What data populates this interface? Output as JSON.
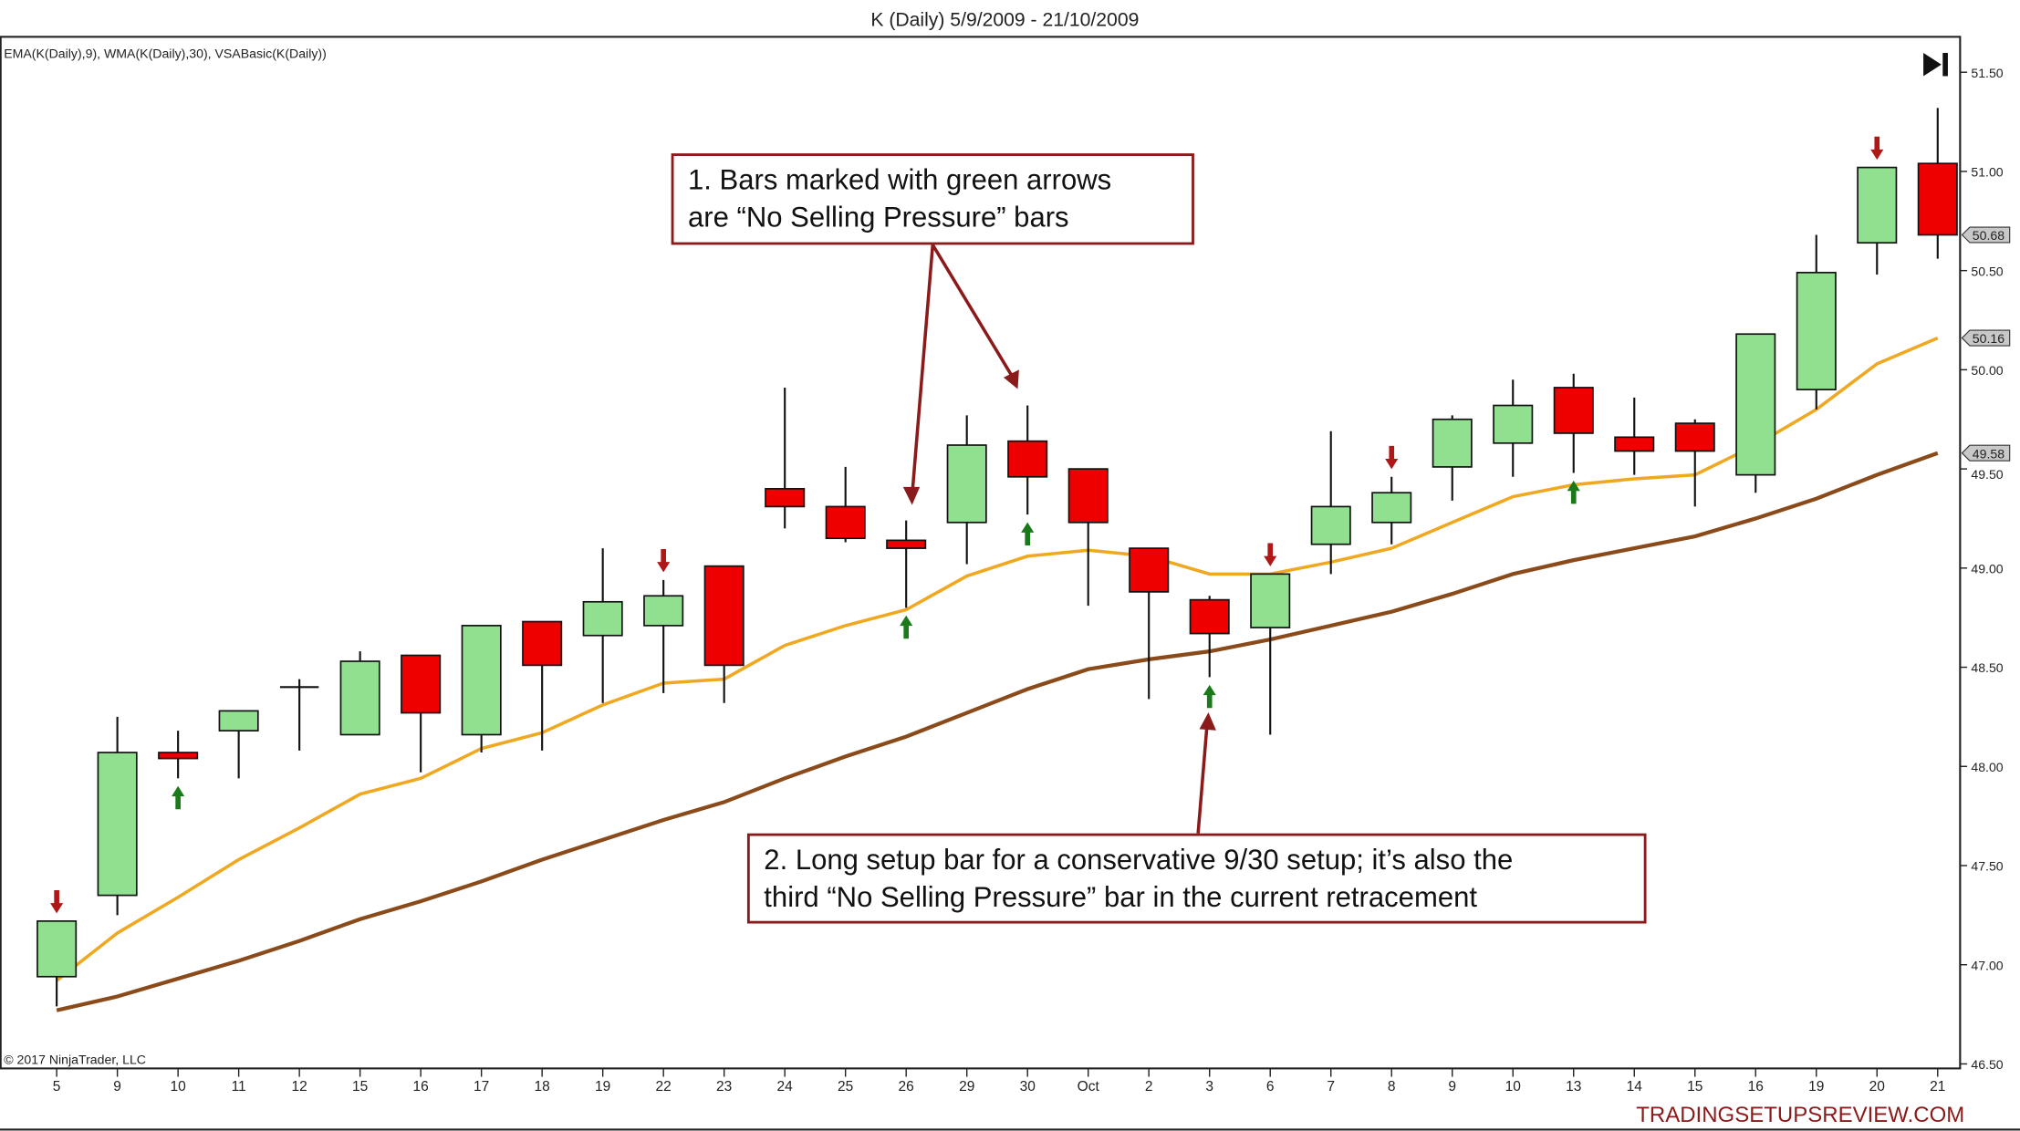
{
  "header": {
    "title": "K (Daily)  5/9/2009 - 21/10/2009"
  },
  "indicators_label": "EMA(K(Daily),9), WMA(K(Daily),30), VSABasic(K(Daily))",
  "copyright": "© 2017 NinjaTrader, LLC",
  "watermark": "TRADINGSETUPSREVIEW.COM",
  "annotations": [
    {
      "lines": [
        "1. Bars marked with green arrows",
        "are “No Selling Pressure” bars"
      ]
    },
    {
      "lines": [
        "2. Long setup bar for a conservative 9/30 setup; it’s also the",
        "third “No Selling Pressure” bar in the current retracement"
      ]
    }
  ],
  "colors": {
    "up": "#90e090",
    "down": "#ee0000",
    "ema": "#f0a820",
    "wma": "#8b4a1a",
    "annotation": "#8b1a1a",
    "green_arrow": "#1a7a1a",
    "red_arrow": "#b01818"
  },
  "chart_data": {
    "type": "candlestick",
    "title": "K (Daily)  5/9/2009 - 21/10/2009",
    "ylim": [
      46.5,
      51.5
    ],
    "y_ticks": [
      "51.50",
      "51.00",
      "50.50",
      "50.00",
      "49.50",
      "49.00",
      "48.50",
      "48.00",
      "47.50",
      "47.00",
      "46.50"
    ],
    "x_labels": [
      "5",
      "9",
      "10",
      "11",
      "12",
      "15",
      "16",
      "17",
      "18",
      "19",
      "22",
      "23",
      "24",
      "25",
      "26",
      "29",
      "30",
      "Oct",
      "2",
      "3",
      "6",
      "7",
      "8",
      "9",
      "10",
      "13",
      "14",
      "15",
      "16",
      "19",
      "20",
      "21"
    ],
    "ohlc": [
      [
        46.94,
        47.22,
        46.79,
        47.22
      ],
      [
        47.35,
        48.25,
        47.25,
        48.07
      ],
      [
        48.07,
        48.18,
        47.94,
        48.04
      ],
      [
        48.18,
        48.28,
        47.94,
        48.28
      ],
      [
        48.4,
        48.44,
        48.08,
        48.4
      ],
      [
        48.16,
        48.58,
        48.16,
        48.53
      ],
      [
        48.56,
        48.56,
        47.97,
        48.27
      ],
      [
        48.16,
        48.71,
        48.07,
        48.71
      ],
      [
        48.73,
        48.73,
        48.08,
        48.51
      ],
      [
        48.66,
        49.1,
        48.32,
        48.83
      ],
      [
        48.71,
        48.94,
        48.37,
        48.86
      ],
      [
        49.01,
        49.01,
        48.32,
        48.51
      ],
      [
        49.4,
        49.91,
        49.2,
        49.31
      ],
      [
        49.31,
        49.51,
        49.13,
        49.15
      ],
      [
        49.14,
        49.24,
        48.8,
        49.1
      ],
      [
        49.23,
        49.77,
        49.02,
        49.62
      ],
      [
        49.64,
        49.82,
        49.27,
        49.46
      ],
      [
        49.5,
        49.5,
        48.81,
        49.23
      ],
      [
        49.1,
        49.1,
        48.34,
        48.88
      ],
      [
        48.84,
        48.86,
        48.45,
        48.67
      ],
      [
        48.7,
        48.97,
        48.16,
        48.97
      ],
      [
        49.12,
        49.69,
        48.97,
        49.31
      ],
      [
        49.23,
        49.46,
        49.12,
        49.38
      ],
      [
        49.51,
        49.77,
        49.34,
        49.75
      ],
      [
        49.63,
        49.95,
        49.46,
        49.82
      ],
      [
        49.91,
        49.98,
        49.48,
        49.68
      ],
      [
        49.66,
        49.86,
        49.47,
        49.59
      ],
      [
        49.73,
        49.75,
        49.31,
        49.59
      ],
      [
        49.47,
        50.18,
        49.38,
        50.18
      ],
      [
        49.9,
        50.68,
        49.8,
        50.49
      ],
      [
        50.64,
        51.02,
        50.48,
        51.02
      ],
      [
        51.04,
        51.32,
        50.56,
        50.68
      ]
    ],
    "series": [
      {
        "name": "EMA(K(Daily),9)",
        "values": [
          46.92,
          47.16,
          47.34,
          47.53,
          47.69,
          47.86,
          47.94,
          48.09,
          48.17,
          48.31,
          48.42,
          48.44,
          48.61,
          48.71,
          48.79,
          48.96,
          49.06,
          49.09,
          49.06,
          48.97,
          48.97,
          49.03,
          49.1,
          49.23,
          49.36,
          49.42,
          49.45,
          49.47,
          49.62,
          49.8,
          50.03,
          50.16
        ]
      },
      {
        "name": "WMA(K(Daily),30)",
        "values": [
          46.77,
          46.84,
          46.93,
          47.02,
          47.12,
          47.23,
          47.32,
          47.42,
          47.53,
          47.63,
          47.73,
          47.82,
          47.94,
          48.05,
          48.15,
          48.27,
          48.39,
          48.49,
          48.54,
          48.58,
          48.64,
          48.71,
          48.78,
          48.87,
          48.97,
          49.04,
          49.1,
          49.16,
          49.25,
          49.35,
          49.47,
          49.58
        ]
      }
    ],
    "price_markers": [
      "50.68",
      "50.16",
      "49.58"
    ],
    "green_up_arrows_bar_index": [
      2,
      14,
      16,
      19,
      25
    ],
    "red_down_arrows_bar_index": [
      0,
      10,
      20,
      22,
      30
    ]
  }
}
